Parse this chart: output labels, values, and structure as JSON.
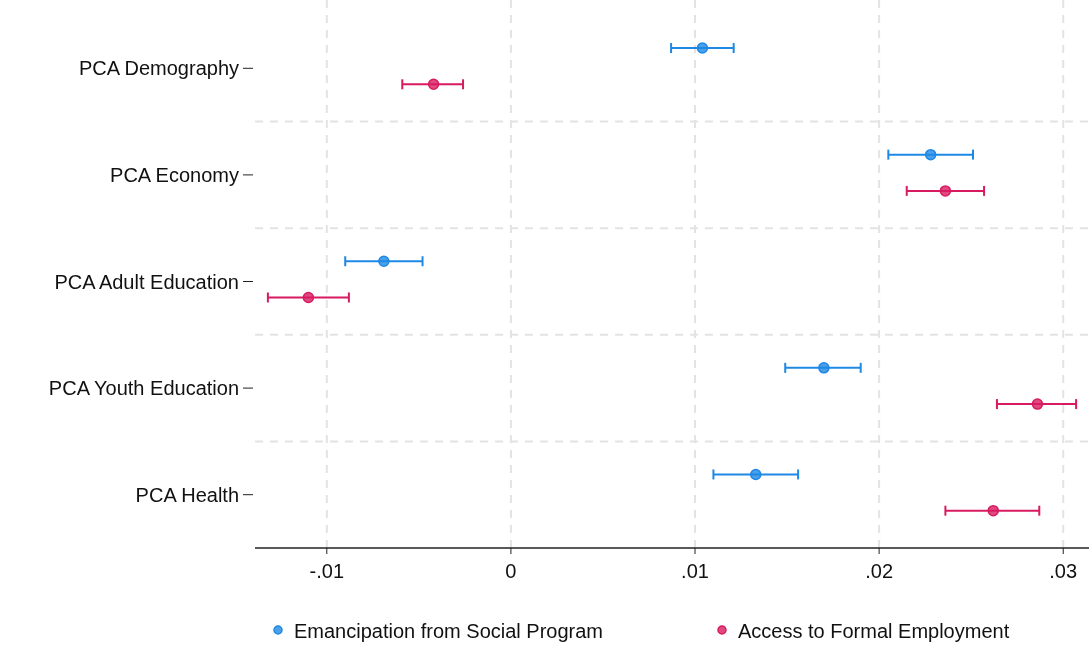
{
  "chart_data": {
    "type": "scatter",
    "orientation": "horizontal",
    "categories": [
      "PCA Demography",
      "PCA Economy",
      "PCA Adult Education",
      "PCA Youth Education",
      "PCA Health"
    ],
    "series": [
      {
        "name": "Emancipation from Social Program",
        "color": "#1e88e5",
        "values": [
          0.0104,
          0.0228,
          -0.0069,
          0.017,
          0.0133
        ],
        "errors": [
          [
            0.0087,
            0.0121
          ],
          [
            0.0205,
            0.0251
          ],
          [
            -0.009,
            -0.0048
          ],
          [
            0.0149,
            0.019
          ],
          [
            0.011,
            0.0156
          ]
        ]
      },
      {
        "name": "Access to Formal Employment",
        "color": "#d81b60",
        "values": [
          -0.0042,
          0.0236,
          -0.011,
          0.0286,
          0.0262
        ],
        "errors": [
          [
            -0.0059,
            -0.0026
          ],
          [
            0.0215,
            0.0257
          ],
          [
            -0.0132,
            -0.0088
          ],
          [
            0.0264,
            0.0307
          ],
          [
            0.0236,
            0.0287
          ]
        ]
      }
    ],
    "xlim": [
      -0.0139,
      0.0314
    ],
    "xticks": [
      {
        "value": -0.01,
        "label": "-.01"
      },
      0,
      {
        "value": 0.01,
        "label": ".01"
      },
      {
        "value": 0.02,
        "label": ".02"
      },
      {
        "value": 0.03,
        "label": ".03"
      }
    ],
    "grid": true,
    "legend": "bottom",
    "marker": "circle"
  }
}
